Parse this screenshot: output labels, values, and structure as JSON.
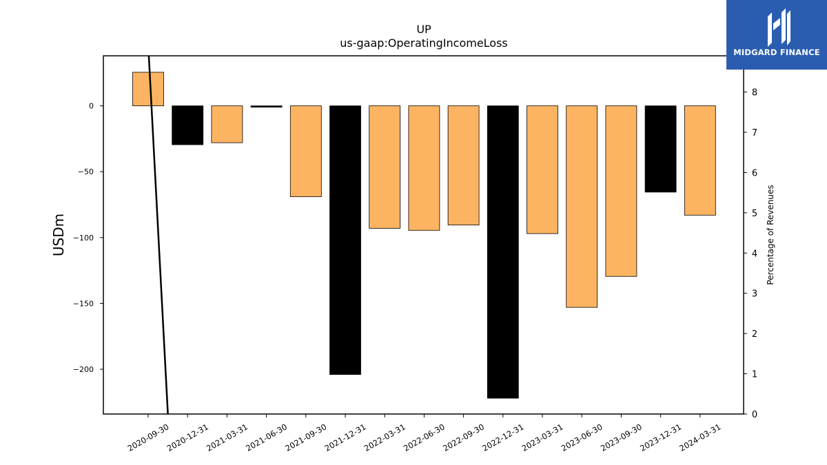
{
  "chart_data": {
    "type": "bar",
    "title": "UP",
    "subtitle": "us-gaap:OperatingIncomeLoss",
    "ylabel": "USDm",
    "y2label": "Percentage of Revenues",
    "categories": [
      "2020-09-30",
      "2020-12-31",
      "2021-03-31",
      "2021-06-30",
      "2021-09-30",
      "2021-12-31",
      "2022-03-31",
      "2022-06-30",
      "2022-09-30",
      "2022-12-31",
      "2023-03-31",
      "2023-06-30",
      "2023-09-30",
      "2023-12-31",
      "2024-03-31"
    ],
    "values": [
      25.5,
      -29.5,
      -28,
      -1,
      -69,
      -204,
      -93,
      -94.5,
      -90.5,
      -222,
      -97,
      -153,
      -129.5,
      -65.5,
      -83
    ],
    "bar_colors": [
      "#fdb462",
      "#000000",
      "#fdb462",
      "#000000",
      "#fdb462",
      "#000000",
      "#fdb462",
      "#fdb462",
      "#fdb462",
      "#000000",
      "#fdb462",
      "#fdb462",
      "#fdb462",
      "#000000",
      "#fdb462"
    ],
    "ylim": [
      -234,
      38
    ],
    "yticks": [
      0,
      -50,
      -100,
      -150,
      -200
    ],
    "y2lim": [
      0,
      8.9
    ],
    "y2ticks": [
      0,
      1,
      2,
      3,
      4,
      5,
      6,
      7,
      8
    ],
    "line": {
      "x": [
        0,
        0.5
      ],
      "y2": [
        9.2,
        0
      ]
    },
    "grid": false,
    "legend": "none"
  },
  "logo": {
    "text": "MIDGARD FINANCE"
  }
}
